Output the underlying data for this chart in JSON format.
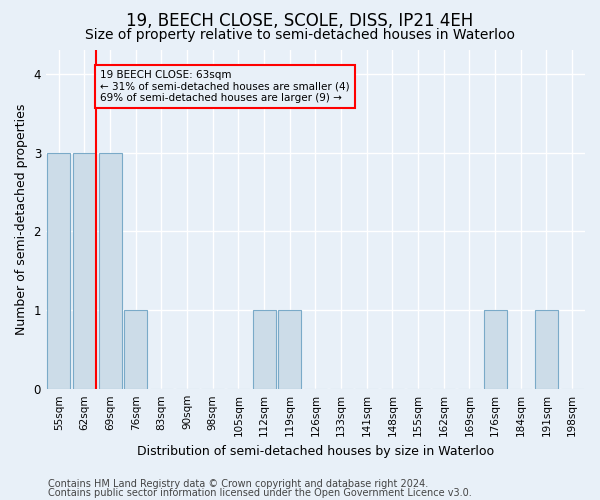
{
  "title": "19, BEECH CLOSE, SCOLE, DISS, IP21 4EH",
  "subtitle": "Size of property relative to semi-detached houses in Waterloo",
  "xlabel": "Distribution of semi-detached houses by size in Waterloo",
  "ylabel": "Number of semi-detached properties",
  "categories": [
    "55sqm",
    "62sqm",
    "69sqm",
    "76sqm",
    "83sqm",
    "90sqm",
    "98sqm",
    "105sqm",
    "112sqm",
    "119sqm",
    "126sqm",
    "133sqm",
    "141sqm",
    "148sqm",
    "155sqm",
    "162sqm",
    "169sqm",
    "176sqm",
    "184sqm",
    "191sqm",
    "198sqm"
  ],
  "values": [
    3,
    3,
    3,
    1,
    0,
    0,
    0,
    0,
    1,
    1,
    0,
    0,
    0,
    0,
    0,
    0,
    0,
    1,
    0,
    1,
    0
  ],
  "bar_color": "#ccdce8",
  "bar_edge_color": "#7aaac8",
  "annotation_line1": "19 BEECH CLOSE: 63sqm",
  "annotation_line2": "← 31% of semi-detached houses are smaller (4)",
  "annotation_line3": "69% of semi-detached houses are larger (9) →",
  "footer_line1": "Contains HM Land Registry data © Crown copyright and database right 2024.",
  "footer_line2": "Contains public sector information licensed under the Open Government Licence v3.0.",
  "ylim": [
    0,
    4.3
  ],
  "yticks": [
    0,
    1,
    2,
    3,
    4
  ],
  "bg_color": "#e8f0f8",
  "grid_color": "#ffffff",
  "title_fontsize": 12,
  "subtitle_fontsize": 10,
  "tick_fontsize": 7.5,
  "label_fontsize": 9,
  "footer_fontsize": 7
}
